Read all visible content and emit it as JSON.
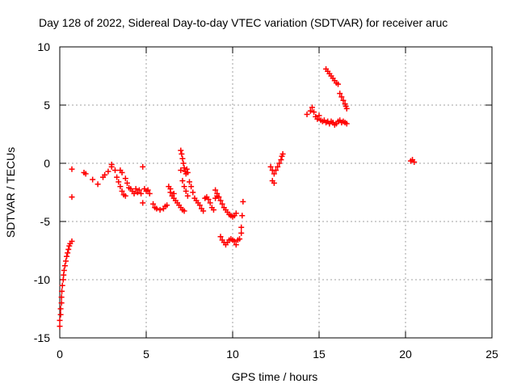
{
  "chart_data": {
    "type": "scatter",
    "title": "Day 128 of 2022, Sidereal Day-to-day VTEC variation (SDTVAR) for receiver aruc",
    "xlabel": "GPS time / hours",
    "ylabel": "SDTVAR / TECUs",
    "xlim": [
      0,
      25
    ],
    "ylim": [
      -15,
      10
    ],
    "xticks": [
      0,
      5,
      10,
      15,
      20,
      25
    ],
    "xtick_labels": [
      "0",
      "5",
      "10",
      "15",
      "20",
      "25"
    ],
    "yticks": [
      -15,
      -10,
      -5,
      0,
      5,
      10
    ],
    "ytick_labels": [
      "-15",
      "-10",
      "-5",
      "0",
      "5",
      "10"
    ],
    "grid": true,
    "marker": "+",
    "color": "#ff0000",
    "series": [
      {
        "points": [
          [
            0.0,
            -14.0
          ],
          [
            0.0,
            -13.5
          ],
          [
            0.05,
            -13.0
          ],
          [
            0.05,
            -12.5
          ],
          [
            0.1,
            -12.0
          ],
          [
            0.1,
            -11.5
          ],
          [
            0.12,
            -11.0
          ],
          [
            0.15,
            -10.5
          ],
          [
            0.2,
            -10.0
          ],
          [
            0.22,
            -9.6
          ],
          [
            0.25,
            -9.2
          ],
          [
            0.3,
            -8.8
          ],
          [
            0.35,
            -8.4
          ],
          [
            0.4,
            -8.0
          ],
          [
            0.45,
            -7.7
          ],
          [
            0.5,
            -7.4
          ],
          [
            0.55,
            -7.1
          ],
          [
            0.6,
            -6.9
          ],
          [
            0.7,
            -6.7
          ],
          [
            0.7,
            -2.9
          ],
          [
            0.7,
            -0.5
          ],
          [
            1.4,
            -0.8
          ],
          [
            1.5,
            -0.9
          ],
          [
            1.9,
            -1.4
          ],
          [
            2.2,
            -1.8
          ],
          [
            2.5,
            -1.2
          ],
          [
            2.6,
            -1.0
          ],
          [
            2.8,
            -0.7
          ],
          [
            3.0,
            -0.3
          ],
          [
            3.0,
            -0.1
          ],
          [
            3.2,
            -0.6
          ],
          [
            3.3,
            -1.2
          ],
          [
            3.4,
            -1.6
          ],
          [
            3.5,
            -2.0
          ],
          [
            3.6,
            -2.4
          ],
          [
            3.7,
            -2.7
          ],
          [
            3.8,
            -2.8
          ],
          [
            3.5,
            -0.6
          ],
          [
            3.6,
            -0.8
          ],
          [
            3.8,
            -1.3
          ],
          [
            3.9,
            -1.7
          ],
          [
            4.0,
            -2.1
          ],
          [
            4.1,
            -2.2
          ],
          [
            4.2,
            -2.4
          ],
          [
            4.3,
            -2.6
          ],
          [
            4.4,
            -2.2
          ],
          [
            4.5,
            -2.5
          ],
          [
            4.6,
            -2.3
          ],
          [
            4.7,
            -2.6
          ],
          [
            4.8,
            -0.3
          ],
          [
            4.8,
            -3.4
          ],
          [
            4.9,
            -2.2
          ],
          [
            5.0,
            -2.4
          ],
          [
            5.1,
            -2.3
          ],
          [
            5.2,
            -2.6
          ],
          [
            5.4,
            -3.5
          ],
          [
            5.5,
            -3.8
          ],
          [
            5.6,
            -3.9
          ],
          [
            5.8,
            -4.0
          ],
          [
            6.0,
            -3.9
          ],
          [
            6.1,
            -3.7
          ],
          [
            6.2,
            -3.6
          ],
          [
            6.3,
            -2.0
          ],
          [
            6.4,
            -2.5
          ],
          [
            6.5,
            -2.8
          ],
          [
            6.6,
            -3.0
          ],
          [
            6.7,
            -3.2
          ],
          [
            6.8,
            -3.4
          ],
          [
            6.9,
            -3.6
          ],
          [
            7.0,
            -3.8
          ],
          [
            7.1,
            -4.0
          ],
          [
            7.2,
            -4.1
          ],
          [
            6.4,
            -2.2
          ],
          [
            6.6,
            -2.6
          ],
          [
            7.0,
            1.1
          ],
          [
            7.05,
            0.8
          ],
          [
            7.1,
            0.4
          ],
          [
            7.15,
            0.0
          ],
          [
            7.2,
            -0.4
          ],
          [
            7.25,
            -0.7
          ],
          [
            7.3,
            -0.9
          ],
          [
            7.35,
            -0.5
          ],
          [
            7.4,
            -0.8
          ],
          [
            7.0,
            -0.6
          ],
          [
            7.1,
            -1.5
          ],
          [
            7.2,
            -2.0
          ],
          [
            7.3,
            -2.4
          ],
          [
            7.4,
            -2.8
          ],
          [
            7.5,
            -1.6
          ],
          [
            7.6,
            -2.0
          ],
          [
            7.7,
            -2.5
          ],
          [
            7.8,
            -3.0
          ],
          [
            7.9,
            -3.2
          ],
          [
            8.0,
            -3.4
          ],
          [
            8.1,
            -3.6
          ],
          [
            8.2,
            -3.9
          ],
          [
            8.3,
            -4.1
          ],
          [
            8.4,
            -3.0
          ],
          [
            8.5,
            -2.9
          ],
          [
            8.6,
            -3.1
          ],
          [
            8.7,
            -3.4
          ],
          [
            8.8,
            -3.8
          ],
          [
            8.9,
            -4.0
          ],
          [
            9.0,
            -3.0
          ],
          [
            9.1,
            -2.8
          ],
          [
            9.0,
            -2.3
          ],
          [
            9.1,
            -2.6
          ],
          [
            9.2,
            -2.9
          ],
          [
            9.3,
            -3.2
          ],
          [
            9.4,
            -3.5
          ],
          [
            9.5,
            -3.8
          ],
          [
            9.6,
            -4.0
          ],
          [
            9.7,
            -4.2
          ],
          [
            9.8,
            -4.4
          ],
          [
            9.9,
            -4.5
          ],
          [
            10.0,
            -4.6
          ],
          [
            10.1,
            -4.5
          ],
          [
            10.2,
            -4.3
          ],
          [
            9.3,
            -6.3
          ],
          [
            9.4,
            -6.6
          ],
          [
            9.5,
            -6.8
          ],
          [
            9.6,
            -7.0
          ],
          [
            9.7,
            -6.8
          ],
          [
            9.8,
            -6.6
          ],
          [
            9.9,
            -6.5
          ],
          [
            10.0,
            -6.6
          ],
          [
            10.1,
            -6.7
          ],
          [
            10.2,
            -7.0
          ],
          [
            10.3,
            -6.6
          ],
          [
            10.4,
            -6.5
          ],
          [
            10.5,
            -6.0
          ],
          [
            10.5,
            -5.5
          ],
          [
            10.55,
            -4.5
          ],
          [
            10.6,
            -3.3
          ],
          [
            12.2,
            -0.3
          ],
          [
            12.3,
            -0.6
          ],
          [
            12.4,
            -0.9
          ],
          [
            12.3,
            -1.5
          ],
          [
            12.4,
            -1.7
          ],
          [
            12.5,
            -0.6
          ],
          [
            12.6,
            -0.3
          ],
          [
            12.7,
            0.0
          ],
          [
            12.8,
            0.3
          ],
          [
            12.85,
            0.6
          ],
          [
            12.9,
            0.8
          ],
          [
            14.3,
            4.2
          ],
          [
            14.5,
            4.5
          ],
          [
            14.6,
            4.8
          ],
          [
            14.7,
            4.4
          ],
          [
            14.8,
            4.0
          ],
          [
            14.9,
            3.8
          ],
          [
            15.0,
            4.1
          ],
          [
            15.1,
            3.7
          ],
          [
            15.2,
            3.6
          ],
          [
            15.3,
            3.7
          ],
          [
            15.4,
            3.5
          ],
          [
            15.5,
            3.6
          ],
          [
            15.6,
            3.4
          ],
          [
            15.7,
            3.6
          ],
          [
            15.8,
            3.5
          ],
          [
            15.9,
            3.3
          ],
          [
            16.0,
            3.4
          ],
          [
            16.1,
            3.6
          ],
          [
            16.2,
            3.7
          ],
          [
            16.3,
            3.5
          ],
          [
            16.4,
            3.6
          ],
          [
            16.5,
            3.5
          ],
          [
            16.6,
            3.4
          ],
          [
            15.4,
            8.1
          ],
          [
            15.5,
            7.9
          ],
          [
            15.6,
            7.7
          ],
          [
            15.7,
            7.5
          ],
          [
            15.8,
            7.3
          ],
          [
            15.9,
            7.1
          ],
          [
            16.0,
            6.9
          ],
          [
            16.1,
            6.8
          ],
          [
            16.2,
            6.0
          ],
          [
            16.3,
            5.7
          ],
          [
            16.4,
            5.4
          ],
          [
            16.5,
            5.1
          ],
          [
            16.55,
            4.9
          ],
          [
            16.6,
            4.7
          ],
          [
            20.3,
            0.2
          ],
          [
            20.4,
            0.3
          ],
          [
            20.5,
            0.1
          ]
        ]
      }
    ]
  }
}
